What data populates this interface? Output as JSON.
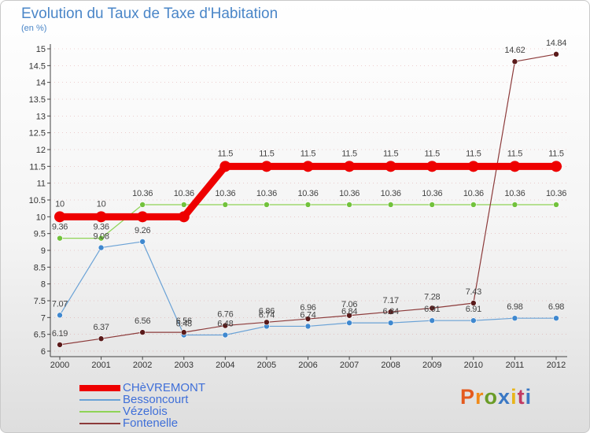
{
  "header": {
    "title": "Evolution du Taux de Taxe d'Habitation",
    "unit": "(en %)"
  },
  "logo": {
    "text": "Proxiti",
    "letter_colors": [
      "#e45a1e",
      "#f08a1a",
      "#6a9c27",
      "#3a78c4",
      "#e8b51b",
      "#c23a63",
      "#3a78c4"
    ]
  },
  "colors": {
    "axis": "#444444",
    "grid_dash": "#cc6666"
  },
  "chart_data": {
    "type": "line",
    "title": "Evolution du Taux de Taxe d'Habitation",
    "ylabel": "(en %)",
    "xlabel": "",
    "ylim": [
      6,
      15
    ],
    "x": [
      "2000",
      "2001",
      "2002",
      "2003",
      "2004",
      "2005",
      "2006",
      "2007",
      "2008",
      "2009",
      "2010",
      "2011",
      "2012"
    ],
    "yticks": [
      "6",
      "6.5",
      "7",
      "7.5",
      "8",
      "8.5",
      "9",
      "9.5",
      "10",
      "10.5",
      "11",
      "11.5",
      "12",
      "12.5",
      "13",
      "13.5",
      "14",
      "14.5",
      "15"
    ],
    "legend_position": "bottom-left",
    "series": [
      {
        "name": "CHèVREMONT",
        "color": "#ee0000",
        "marker": "#ee0000",
        "values": [
          10,
          10,
          10,
          10,
          11.5,
          11.5,
          11.5,
          11.5,
          11.5,
          11.5,
          11.5,
          11.5,
          11.5
        ],
        "labels": [
          "10",
          "10",
          "",
          "",
          "11.5",
          "11.5",
          "11.5",
          "11.5",
          "11.5",
          "11.5",
          "11.5",
          "11.5",
          "11.5"
        ]
      },
      {
        "name": "Bessoncourt",
        "color": "#6aa2d6",
        "marker": "#3f88cf",
        "values": [
          7.07,
          9.08,
          9.26,
          6.48,
          6.48,
          6.74,
          6.74,
          6.84,
          6.84,
          6.91,
          6.91,
          6.98,
          6.98
        ],
        "labels": [
          "7.07",
          "9.08",
          "9.26",
          "6.48",
          "6.48",
          "6.74",
          "6.74",
          "6.84",
          "6.84",
          "6.91",
          "6.91",
          "6.98",
          "6.98"
        ]
      },
      {
        "name": "Vézelois",
        "color": "#8fd456",
        "marker": "#72c23c",
        "values": [
          9.36,
          9.36,
          10.36,
          10.36,
          10.36,
          10.36,
          10.36,
          10.36,
          10.36,
          10.36,
          10.36,
          10.36,
          10.36
        ],
        "labels": [
          "9.36",
          "9.36",
          "10.36",
          "10.36",
          "10.36",
          "10.36",
          "10.36",
          "10.36",
          "10.36",
          "10.36",
          "10.36",
          "10.36",
          "10.36"
        ]
      },
      {
        "name": "Fontenelle",
        "color": "#8c3a3a",
        "marker": "#5a1a1a",
        "values": [
          6.19,
          6.37,
          6.56,
          6.56,
          6.76,
          6.86,
          6.96,
          7.06,
          7.17,
          7.28,
          7.43,
          14.62,
          14.84
        ],
        "labels": [
          "6.19",
          "6.37",
          "6.56",
          "6.56",
          "6.76",
          "6.86",
          "6.96",
          "7.06",
          "7.17",
          "7.28",
          "7.43",
          "14.62",
          "14.84"
        ]
      }
    ]
  }
}
